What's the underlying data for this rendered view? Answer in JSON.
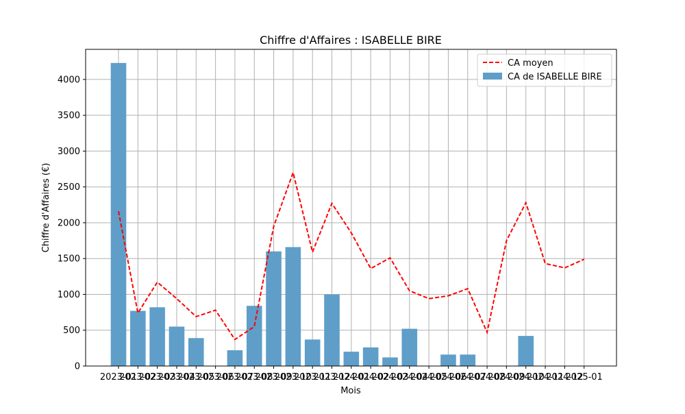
{
  "chart_data": {
    "type": "bar",
    "title": "Chiffre d'Affaires : ISABELLE BIRE",
    "xlabel": "Mois",
    "ylabel": "Chiffre d'Affaires (€)",
    "ylim": [
      0,
      4420
    ],
    "yticks": [
      0,
      500,
      1000,
      1500,
      2000,
      2500,
      3000,
      3500,
      4000
    ],
    "grid": true,
    "legend_position": "top-right",
    "categories": [
      "2023-01",
      "2023-02",
      "2023-03",
      "2023-04",
      "2023-05",
      "2023-06",
      "2023-07",
      "2023-08",
      "2023-09",
      "2023-10",
      "2023-11",
      "2023-12",
      "2024-01",
      "2024-02",
      "2024-03",
      "2024-04",
      "2024-05",
      "2024-06",
      "2024-07",
      "2024-08",
      "2024-09",
      "2024-10",
      "2024-11",
      "2024-12",
      "2025-01"
    ],
    "series": [
      {
        "name": "CA moyen",
        "type": "line",
        "style": "dashed",
        "color": "#ff0000",
        "values": [
          2160,
          740,
          1170,
          940,
          690,
          780,
          370,
          550,
          1950,
          2700,
          1590,
          2270,
          1860,
          1360,
          1510,
          1050,
          940,
          980,
          1080,
          470,
          1750,
          2280,
          1430,
          1370,
          1490
        ]
      },
      {
        "name": "CA de ISABELLE BIRE",
        "type": "bar",
        "color": "#5f9ec9",
        "values": [
          4230,
          770,
          820,
          550,
          390,
          0,
          220,
          840,
          1600,
          1660,
          370,
          1000,
          200,
          260,
          120,
          520,
          0,
          160,
          160,
          0,
          0,
          420,
          0,
          0,
          0
        ]
      }
    ]
  }
}
